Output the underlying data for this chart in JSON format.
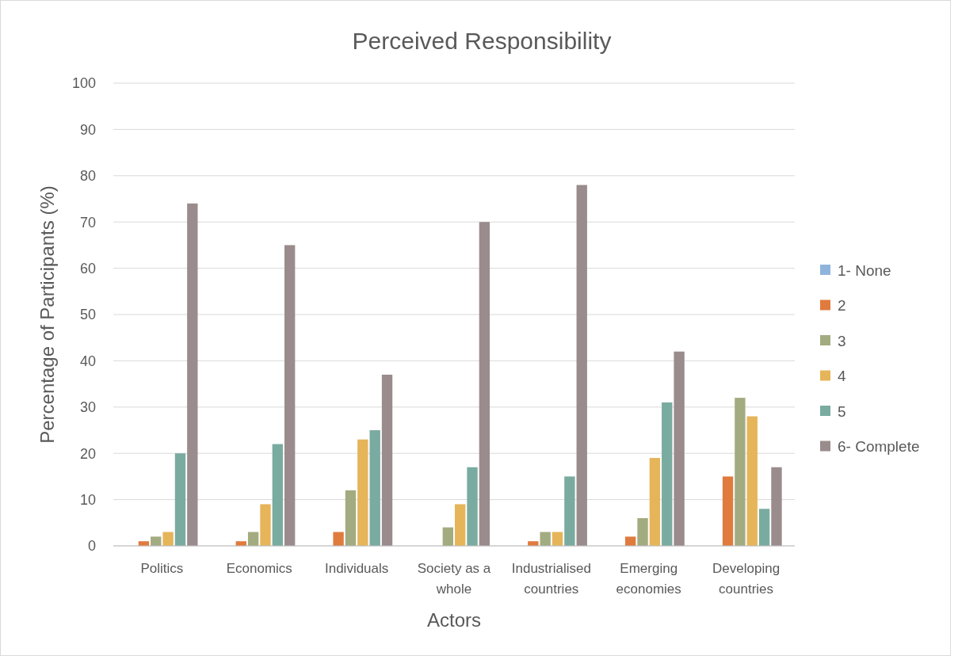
{
  "chart_data": {
    "type": "bar",
    "title": "Perceived Responsibility",
    "xlabel": "Actors",
    "ylabel": "Percentage of Participants (%)",
    "categories": [
      "Politics",
      "Economics",
      "Individuals",
      "Society as a whole",
      "Industrialised countries",
      "Emerging economies",
      "Developing countries"
    ],
    "series": [
      {
        "name": "1- None",
        "color": "#8fb4dc",
        "values": [
          0,
          0,
          0,
          0,
          0,
          0,
          0
        ]
      },
      {
        "name": "2",
        "color": "#e07b3e",
        "values": [
          1,
          1,
          3,
          0,
          1,
          2,
          15
        ]
      },
      {
        "name": "3",
        "color": "#a3ab80",
        "values": [
          2,
          3,
          12,
          4,
          3,
          6,
          32
        ]
      },
      {
        "name": "4",
        "color": "#e6b55a",
        "values": [
          3,
          9,
          23,
          9,
          3,
          19,
          28
        ]
      },
      {
        "name": "5",
        "color": "#7aaba0",
        "values": [
          20,
          22,
          25,
          17,
          15,
          31,
          8
        ]
      },
      {
        "name": "6- Complete",
        "color": "#9a8c8c",
        "values": [
          74,
          65,
          37,
          70,
          78,
          42,
          17
        ]
      }
    ],
    "ylim": [
      0,
      100
    ],
    "yticks": [
      0,
      10,
      20,
      30,
      40,
      50,
      60,
      70,
      80,
      90,
      100
    ],
    "grid": "y",
    "legend": "right"
  }
}
